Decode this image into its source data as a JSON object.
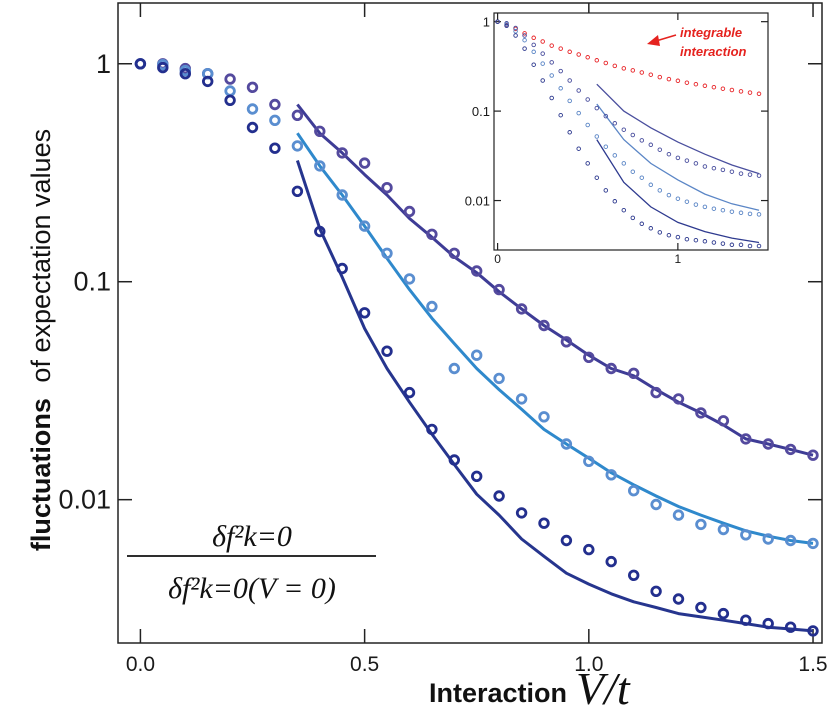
{
  "chart_data": [
    {
      "type": "line",
      "title": "",
      "ylabel_bold": "fluctuations",
      "ylabel_rest": "of expectation values",
      "xlabel_bold": "Interaction",
      "xlabel_math": "V/t",
      "yscale": "log",
      "xlim": [
        -0.05,
        1.52
      ],
      "ylim": [
        0.0022,
        1.9
      ],
      "xticks": [
        0.0,
        0.5,
        1.0,
        1.5
      ],
      "xtick_labels": [
        "0.0",
        "0.5",
        "1.0",
        "1.5"
      ],
      "yticks": [
        1,
        0.1,
        0.01
      ],
      "ytick_labels": [
        "1",
        "0.1",
        "0.01"
      ],
      "formula_numerator": "δf²k=0",
      "formula_denominator": "δf²k=0(V = 0)",
      "colors": {
        "top": "#544a9e",
        "middle": "#5a8ed0",
        "bottom": "#232f8e",
        "top_line": "#3e3c96",
        "middle_line": "#2f89cc",
        "bottom_line": "#26358e"
      },
      "series": [
        {
          "x": [
            0.0,
            0.05,
            0.1,
            0.15,
            0.2,
            0.25,
            0.3,
            0.35,
            0.4,
            0.45,
            0.5,
            0.55,
            0.6,
            0.65,
            0.7,
            0.75,
            0.8,
            0.85,
            0.9,
            0.95,
            1.0,
            1.05,
            1.1,
            1.15,
            1.2,
            1.25,
            1.3,
            1.35,
            1.4,
            1.45,
            1.5
          ],
          "y": [
            1.0,
            1.0,
            0.95,
            0.9,
            0.85,
            0.78,
            0.65,
            0.58,
            0.49,
            0.39,
            0.35,
            0.27,
            0.21,
            0.165,
            0.135,
            0.112,
            0.092,
            0.075,
            0.063,
            0.053,
            0.045,
            0.04,
            0.038,
            0.031,
            0.029,
            0.025,
            0.023,
            0.019,
            0.018,
            0.017,
            0.016
          ],
          "line_x": [
            0.35,
            0.4,
            0.45,
            0.5,
            0.55,
            0.6,
            0.65,
            0.7,
            0.75,
            0.8,
            0.85,
            0.9,
            0.95,
            1.0,
            1.05,
            1.1,
            1.15,
            1.2,
            1.25,
            1.3,
            1.35,
            1.4,
            1.45,
            1.5
          ],
          "line_y": [
            0.65,
            0.48,
            0.39,
            0.31,
            0.25,
            0.195,
            0.16,
            0.13,
            0.11,
            0.09,
            0.075,
            0.063,
            0.054,
            0.046,
            0.04,
            0.037,
            0.032,
            0.028,
            0.025,
            0.022,
            0.019,
            0.018,
            0.017,
            0.016
          ]
        },
        {
          "x": [
            0.0,
            0.05,
            0.1,
            0.15,
            0.2,
            0.25,
            0.3,
            0.35,
            0.4,
            0.45,
            0.5,
            0.55,
            0.6,
            0.65,
            0.7,
            0.75,
            0.8,
            0.85,
            0.9,
            0.95,
            1.0,
            1.05,
            1.1,
            1.15,
            1.2,
            1.25,
            1.3,
            1.35,
            1.4,
            1.45,
            1.5
          ],
          "y": [
            1.0,
            0.99,
            0.93,
            0.9,
            0.75,
            0.62,
            0.55,
            0.42,
            0.34,
            0.25,
            0.18,
            0.135,
            0.103,
            0.077,
            0.04,
            0.046,
            0.036,
            0.029,
            0.024,
            0.018,
            0.015,
            0.013,
            0.011,
            0.0095,
            0.0085,
            0.0077,
            0.0073,
            0.0069,
            0.0066,
            0.0065,
            0.0063
          ],
          "line_x": [
            0.35,
            0.4,
            0.45,
            0.5,
            0.55,
            0.6,
            0.65,
            0.7,
            0.75,
            0.8,
            0.85,
            0.9,
            0.95,
            1.0,
            1.05,
            1.1,
            1.15,
            1.2,
            1.25,
            1.3,
            1.35,
            1.4,
            1.45,
            1.5
          ],
          "line_y": [
            0.48,
            0.34,
            0.25,
            0.18,
            0.128,
            0.092,
            0.068,
            0.052,
            0.04,
            0.032,
            0.026,
            0.021,
            0.018,
            0.0155,
            0.0133,
            0.0117,
            0.0104,
            0.0093,
            0.0085,
            0.0078,
            0.0072,
            0.0068,
            0.0065,
            0.0063
          ]
        },
        {
          "x": [
            0.0,
            0.05,
            0.1,
            0.15,
            0.2,
            0.25,
            0.3,
            0.35,
            0.4,
            0.45,
            0.5,
            0.55,
            0.6,
            0.65,
            0.7,
            0.75,
            0.8,
            0.85,
            0.9,
            0.95,
            1.0,
            1.05,
            1.1,
            1.15,
            1.2,
            1.25,
            1.3,
            1.35,
            1.4,
            1.45,
            1.5
          ],
          "y": [
            1.0,
            0.96,
            0.9,
            0.83,
            0.68,
            0.51,
            0.41,
            0.26,
            0.17,
            0.115,
            0.072,
            0.048,
            0.031,
            0.021,
            0.0152,
            0.0128,
            0.0104,
            0.0087,
            0.0078,
            0.0065,
            0.0059,
            0.0052,
            0.0045,
            0.0038,
            0.0035,
            0.0032,
            0.003,
            0.0028,
            0.0027,
            0.0026,
            0.0025
          ],
          "line_x": [
            0.35,
            0.4,
            0.45,
            0.5,
            0.55,
            0.6,
            0.65,
            0.7,
            0.75,
            0.8,
            0.85,
            0.9,
            0.95,
            1.0,
            1.05,
            1.1,
            1.15,
            1.2,
            1.25,
            1.3,
            1.35,
            1.4,
            1.45,
            1.5
          ],
          "line_y": [
            0.36,
            0.175,
            0.105,
            0.061,
            0.04,
            0.028,
            0.02,
            0.0145,
            0.0106,
            0.0085,
            0.0066,
            0.0055,
            0.0046,
            0.0041,
            0.0037,
            0.0034,
            0.0032,
            0.003,
            0.0029,
            0.0028,
            0.0027,
            0.0026,
            0.00255,
            0.0025
          ]
        }
      ]
    },
    {
      "type": "line",
      "title": "",
      "yscale": "log",
      "xlim": [
        -0.02,
        1.5
      ],
      "ylim": [
        0.0028,
        1.25
      ],
      "xticks": [
        0,
        1
      ],
      "xtick_labels": [
        "0",
        "1"
      ],
      "yticks": [
        1,
        0.1,
        0.01
      ],
      "ytick_labels": [
        "1",
        "0.1",
        "0.01"
      ],
      "annotation": [
        "integrable",
        "interaction"
      ],
      "colors": {
        "integrable": "#e8262a",
        "line": "#2e3a8f"
      },
      "series": [
        {
          "x": [
            0.0,
            0.05,
            0.1,
            0.15,
            0.2,
            0.25,
            0.3,
            0.35,
            0.4,
            0.45,
            0.5,
            0.55,
            0.6,
            0.65,
            0.7,
            0.75,
            0.8,
            0.85,
            0.9,
            0.95,
            1.0,
            1.05,
            1.1,
            1.15,
            1.2,
            1.25,
            1.3,
            1.35,
            1.4,
            1.45
          ],
          "y": [
            1.0,
            0.92,
            0.83,
            0.74,
            0.66,
            0.6,
            0.54,
            0.5,
            0.46,
            0.43,
            0.4,
            0.37,
            0.345,
            0.32,
            0.3,
            0.285,
            0.27,
            0.255,
            0.24,
            0.228,
            0.218,
            0.208,
            0.2,
            0.192,
            0.185,
            0.178,
            0.172,
            0.166,
            0.161,
            0.156
          ]
        },
        {
          "x": [
            0.0,
            0.05,
            0.1,
            0.15,
            0.2,
            0.25,
            0.3,
            0.35,
            0.4,
            0.45,
            0.5,
            0.55,
            0.6,
            0.65,
            0.7,
            0.75,
            0.8,
            0.85,
            0.9,
            0.95,
            1.0,
            1.05,
            1.1,
            1.15,
            1.2,
            1.25,
            1.3,
            1.35,
            1.4,
            1.45
          ],
          "y": [
            1.0,
            0.96,
            0.85,
            0.7,
            0.55,
            0.44,
            0.35,
            0.28,
            0.22,
            0.17,
            0.135,
            0.108,
            0.088,
            0.073,
            0.062,
            0.054,
            0.047,
            0.042,
            0.037,
            0.033,
            0.03,
            0.028,
            0.026,
            0.024,
            0.023,
            0.022,
            0.021,
            0.02,
            0.0195,
            0.019
          ],
          "line_x": [
            0.55,
            0.7,
            0.85,
            1.0,
            1.15,
            1.3,
            1.45
          ],
          "line_y": [
            0.2,
            0.1,
            0.065,
            0.045,
            0.033,
            0.025,
            0.02
          ]
        },
        {
          "x": [
            0.0,
            0.05,
            0.1,
            0.15,
            0.2,
            0.25,
            0.3,
            0.35,
            0.4,
            0.45,
            0.5,
            0.55,
            0.6,
            0.65,
            0.7,
            0.75,
            0.8,
            0.85,
            0.9,
            0.95,
            1.0,
            1.05,
            1.1,
            1.15,
            1.2,
            1.25,
            1.3,
            1.35,
            1.4,
            1.45
          ],
          "y": [
            1.0,
            0.93,
            0.78,
            0.62,
            0.46,
            0.34,
            0.25,
            0.18,
            0.13,
            0.095,
            0.07,
            0.052,
            0.04,
            0.032,
            0.026,
            0.021,
            0.018,
            0.015,
            0.013,
            0.0115,
            0.0105,
            0.0097,
            0.009,
            0.0085,
            0.0081,
            0.0078,
            0.0075,
            0.0073,
            0.0071,
            0.007
          ],
          "line_x": [
            0.55,
            0.7,
            0.85,
            1.0,
            1.15,
            1.3,
            1.45
          ],
          "line_y": [
            0.12,
            0.048,
            0.026,
            0.017,
            0.0118,
            0.0092,
            0.0078
          ]
        },
        {
          "x": [
            0.0,
            0.05,
            0.1,
            0.15,
            0.2,
            0.25,
            0.3,
            0.35,
            0.4,
            0.45,
            0.5,
            0.55,
            0.6,
            0.65,
            0.7,
            0.75,
            0.8,
            0.85,
            0.9,
            0.95,
            1.0,
            1.05,
            1.1,
            1.15,
            1.2,
            1.25,
            1.3,
            1.35,
            1.4,
            1.45
          ],
          "y": [
            1.0,
            0.9,
            0.7,
            0.5,
            0.33,
            0.22,
            0.14,
            0.09,
            0.058,
            0.038,
            0.026,
            0.018,
            0.013,
            0.0098,
            0.0078,
            0.0064,
            0.0055,
            0.0049,
            0.0044,
            0.0041,
            0.0039,
            0.0037,
            0.0036,
            0.0035,
            0.0034,
            0.0033,
            0.0032,
            0.0032,
            0.0031,
            0.0031
          ],
          "line_x": [
            0.55,
            0.7,
            0.85,
            1.0,
            1.15,
            1.3,
            1.45
          ],
          "line_y": [
            0.048,
            0.016,
            0.0085,
            0.0057,
            0.0045,
            0.0038,
            0.0034
          ]
        }
      ]
    }
  ]
}
